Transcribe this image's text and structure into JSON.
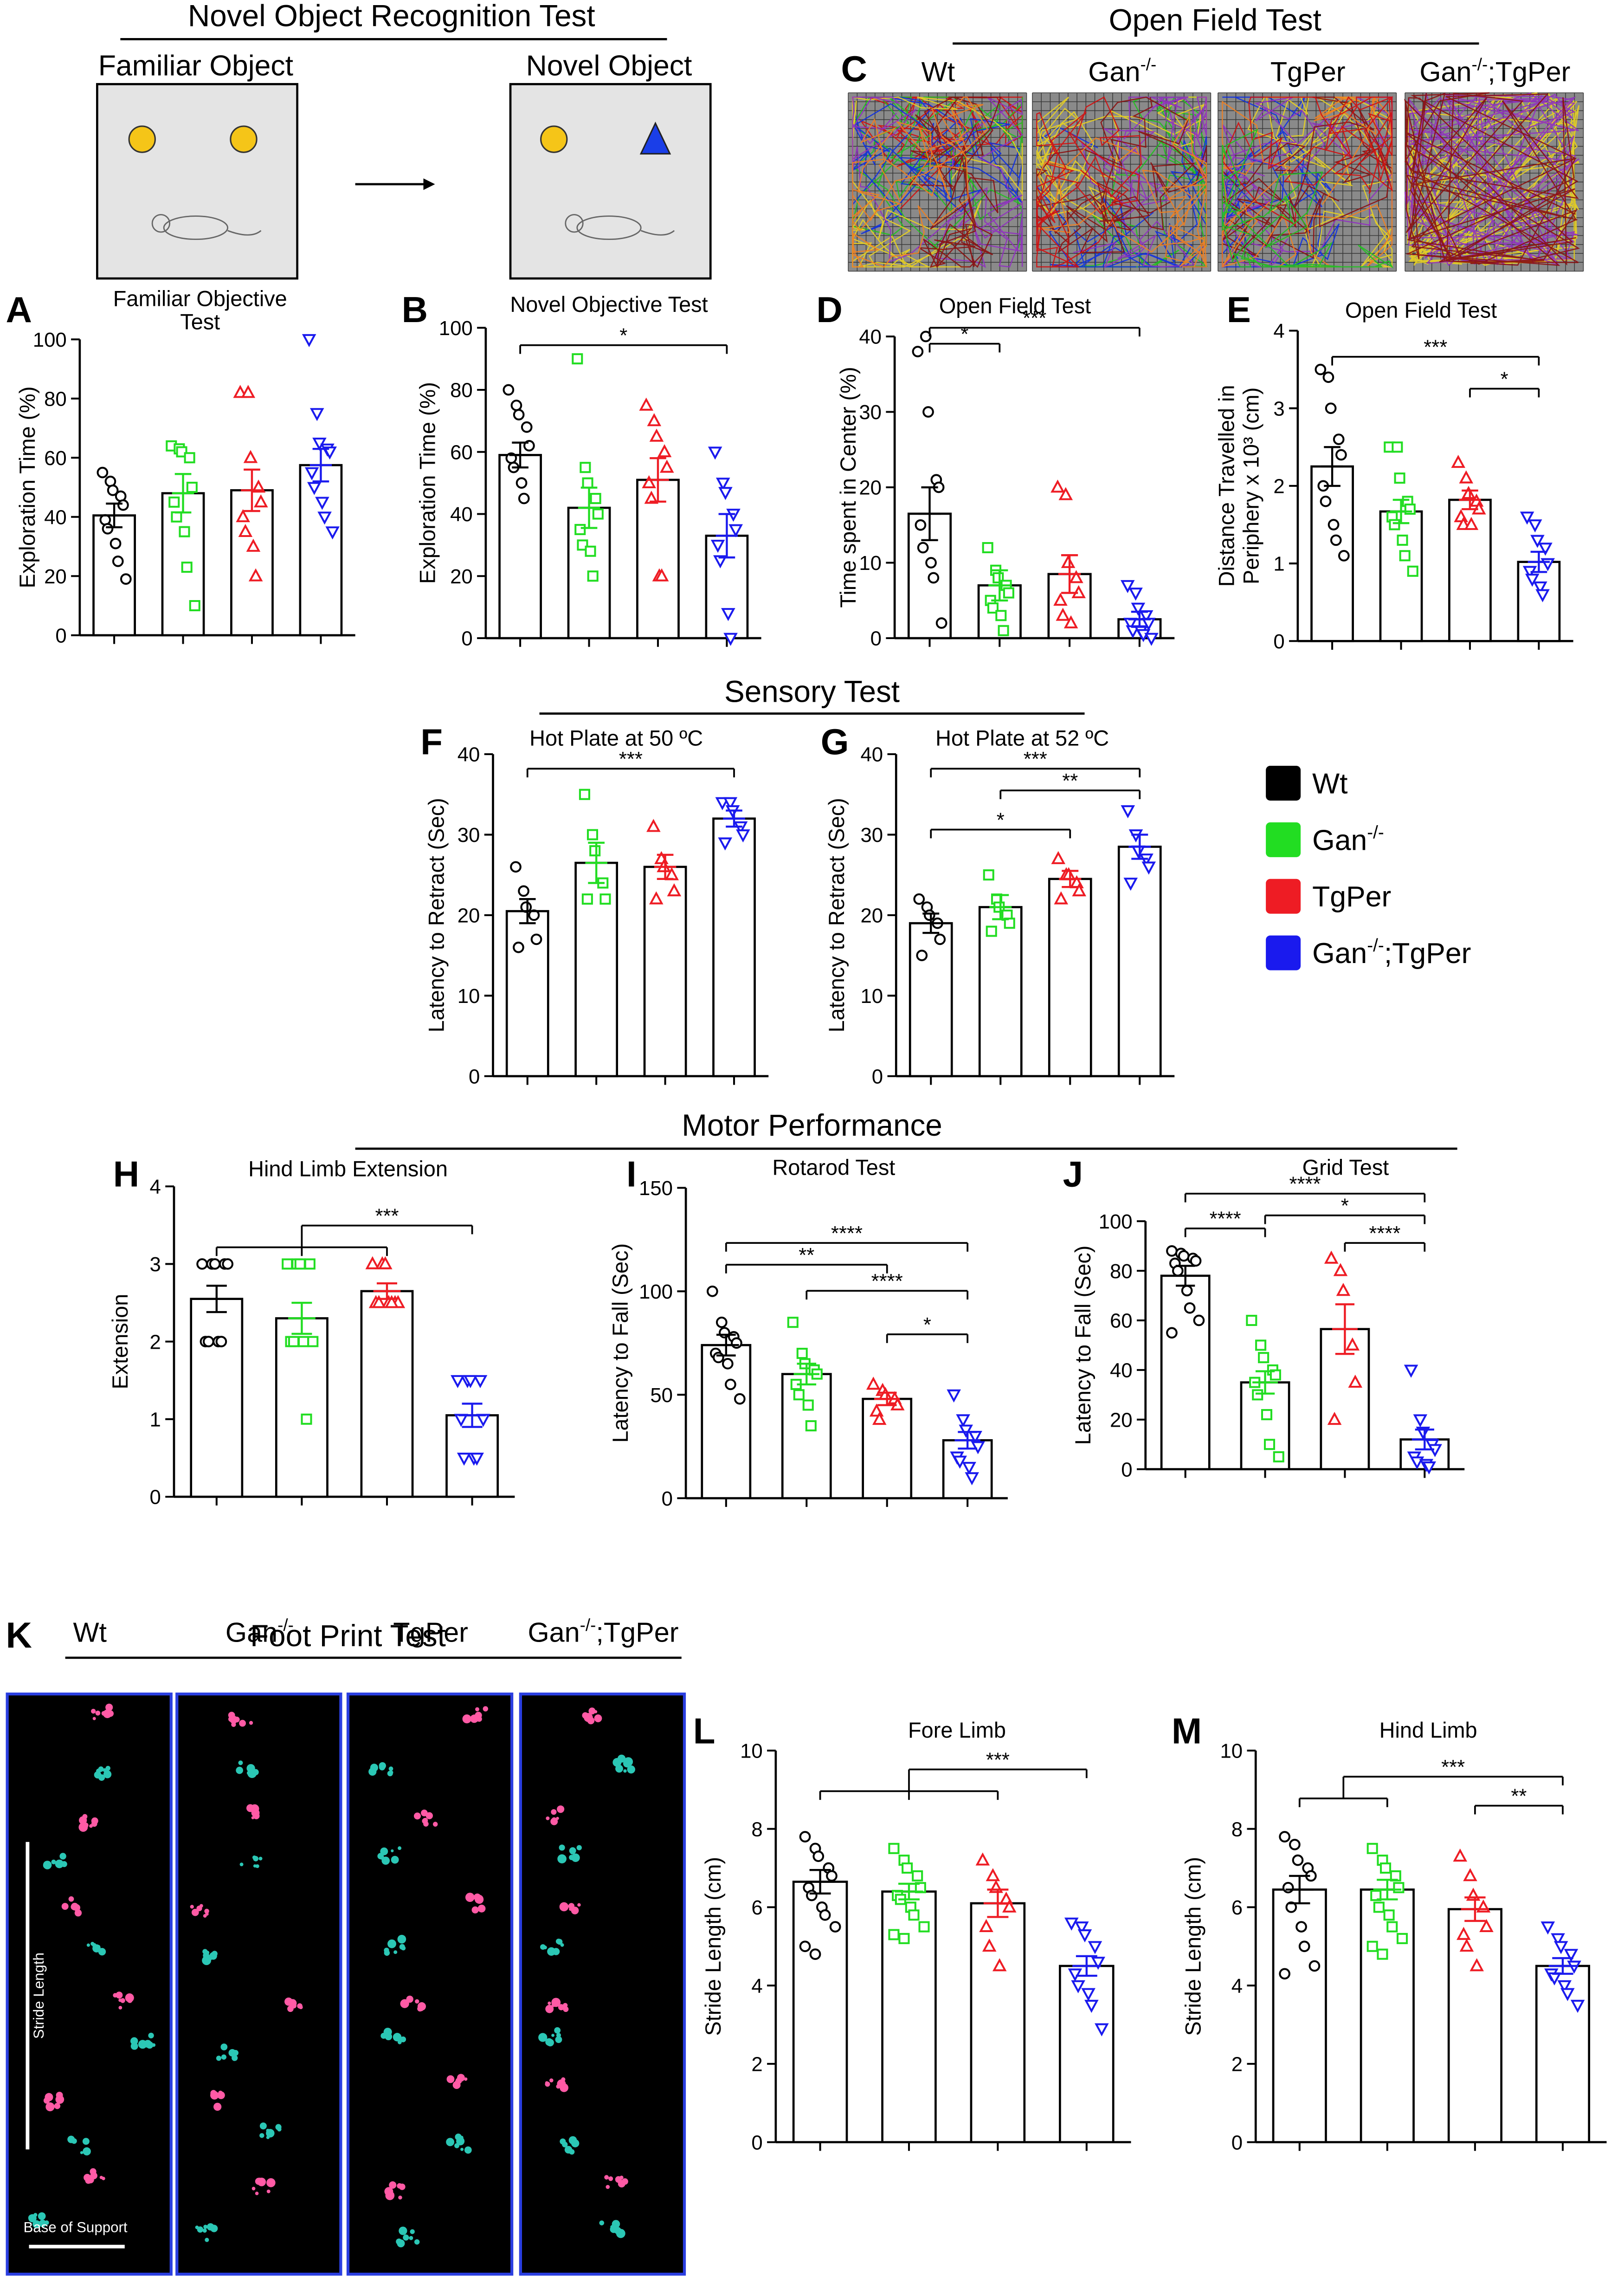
{
  "figure": {
    "headings": [
      "Novel Object Recognition Test",
      "Open Field Test",
      "Sensory Test",
      "Motor Performance",
      "Foot Print Test"
    ],
    "schematic": {
      "familiar": "Familiar Object",
      "novel": "Novel Object"
    },
    "open_field": {
      "panel": "C",
      "groups": [
        [
          "Wt"
        ],
        [
          "Gan",
          "-/-"
        ],
        [
          "TgPer"
        ],
        [
          "Gan",
          "-/-",
          ";TgPer"
        ]
      ]
    },
    "footprint": {
      "panel": "K",
      "groups": [
        [
          "Wt"
        ],
        [
          "Gan",
          "-/-"
        ],
        [
          "TgPer"
        ],
        [
          "Gan",
          "-/-",
          ";TgPer"
        ]
      ],
      "stride_label": "Stride Length",
      "base_label": "Base of Support"
    },
    "legend": [
      {
        "label": [
          "Wt"
        ],
        "color": "#000000"
      },
      {
        "label": [
          "Gan",
          "-/-"
        ],
        "color": "#22dd22"
      },
      {
        "label": [
          "TgPer"
        ],
        "color": "#ee1c24"
      },
      {
        "label": [
          "Gan",
          "-/-",
          ";TgPer"
        ],
        "color": "#1a1aee"
      }
    ]
  },
  "chart_data": [
    {
      "type": "bar",
      "panel": "A",
      "title": [
        "Familiar Objective",
        "Test"
      ],
      "y_label": [
        "Exploration Time (%)"
      ],
      "categories": [
        null,
        null,
        null,
        null
      ],
      "values": [
        40.5,
        48,
        49,
        57.5
      ],
      "errors": [
        4,
        6.5,
        7,
        5.5
      ],
      "points": [
        [
          55,
          52,
          49,
          47,
          44,
          39,
          36,
          31,
          25,
          19
        ],
        [
          64,
          63,
          62,
          60,
          50,
          45,
          40,
          35,
          23,
          10
        ],
        [
          82,
          82,
          60,
          50,
          45,
          40,
          35,
          30,
          20
        ],
        [
          100,
          75,
          65,
          63,
          62,
          55,
          50,
          45,
          40,
          35
        ]
      ],
      "colors": [
        "#000000",
        "#22dd22",
        "#ee1c24",
        "#1a1aee"
      ],
      "markers": [
        "circle",
        "square",
        "triangle",
        "triangle-down"
      ],
      "ylim": [
        0,
        100
      ],
      "yticks": [
        0,
        20,
        40,
        60,
        80,
        100
      ],
      "comparisons": []
    },
    {
      "type": "bar",
      "panel": "B",
      "title": [
        "Novel Objective Test"
      ],
      "y_label": [
        "Exploration Time (%)"
      ],
      "categories": [
        null,
        null,
        null,
        null
      ],
      "values": [
        59,
        42,
        51,
        33
      ],
      "errors": [
        4,
        6.5,
        7,
        7
      ],
      "points": [
        [
          80,
          75,
          72,
          68,
          62,
          58,
          55,
          50,
          45
        ],
        [
          90,
          55,
          50,
          45,
          40,
          35,
          30,
          28,
          20
        ],
        [
          75,
          70,
          65,
          60,
          55,
          50,
          45,
          20,
          20
        ],
        [
          60,
          50,
          47,
          40,
          35,
          30,
          25,
          8,
          0
        ]
      ],
      "colors": [
        "#000000",
        "#22dd22",
        "#ee1c24",
        "#1a1aee"
      ],
      "markers": [
        "circle",
        "square",
        "triangle",
        "triangle-down"
      ],
      "ylim": [
        0,
        100
      ],
      "yticks": [
        0,
        20,
        40,
        60,
        80,
        100
      ],
      "comparisons": [
        {
          "left": [
            0
          ],
          "right": 3,
          "label": "*"
        }
      ]
    },
    {
      "type": "bar",
      "panel": "D",
      "title": [
        "Open Field Test"
      ],
      "y_label": [
        "Time spent in Center (%)"
      ],
      "categories": [
        null,
        null,
        null,
        null
      ],
      "values": [
        16.5,
        7,
        8.5,
        2.5
      ],
      "errors": [
        3.5,
        2,
        2.5,
        1
      ],
      "points": [
        [
          38,
          40,
          30,
          21,
          20,
          15,
          12,
          10,
          8,
          2
        ],
        [
          12,
          9,
          8,
          7,
          6,
          5,
          4,
          3,
          1
        ],
        [
          20,
          19,
          10,
          8,
          6,
          5,
          3,
          2
        ],
        [
          7,
          6,
          4,
          3,
          2,
          2,
          1,
          1,
          0.5,
          0
        ]
      ],
      "colors": [
        "#000000",
        "#22dd22",
        "#ee1c24",
        "#1a1aee"
      ],
      "markers": [
        "circle",
        "square",
        "triangle",
        "triangle-down"
      ],
      "ylim": [
        0,
        40
      ],
      "yticks": [
        0,
        10,
        20,
        30,
        40
      ],
      "comparisons": [
        {
          "left": [
            0
          ],
          "right": 1,
          "label": "*"
        },
        {
          "left": [
            0
          ],
          "right": 3,
          "label": "***"
        }
      ]
    },
    {
      "type": "bar",
      "panel": "E",
      "title": [
        "Open Field Test"
      ],
      "y_label": [
        "Distance Travelled in",
        "Periphery x 10³ (cm)"
      ],
      "categories": [
        null,
        null,
        null,
        null
      ],
      "values": [
        2.25,
        1.67,
        1.82,
        1.02
      ],
      "errors": [
        0.25,
        0.15,
        0.12,
        0.13
      ],
      "points": [
        [
          3.5,
          3.4,
          3.0,
          2.6,
          2.4,
          2.0,
          1.8,
          1.5,
          1.3,
          1.1
        ],
        [
          2.5,
          2.5,
          2.1,
          1.8,
          1.7,
          1.6,
          1.5,
          1.3,
          1.1,
          0.9
        ],
        [
          2.3,
          2.1,
          1.9,
          1.8,
          1.7,
          1.6,
          1.5,
          1.5
        ],
        [
          1.6,
          1.5,
          1.3,
          1.2,
          1.0,
          0.9,
          0.8,
          0.7,
          0.6
        ]
      ],
      "colors": [
        "#000000",
        "#22dd22",
        "#ee1c24",
        "#1a1aee"
      ],
      "markers": [
        "circle",
        "square",
        "triangle",
        "triangle-down"
      ],
      "ylim": [
        0,
        4
      ],
      "yticks": [
        0,
        1,
        2,
        3,
        4
      ],
      "comparisons": [
        {
          "left": [
            0
          ],
          "right": 3,
          "label": "***"
        },
        {
          "left": [
            2
          ],
          "right": 3,
          "label": "*"
        }
      ]
    },
    {
      "type": "bar",
      "panel": "F",
      "title": [
        "Hot Plate at 50 ºC"
      ],
      "y_label": [
        "Latency to Retract (Sec)"
      ],
      "categories": [
        null,
        null,
        null,
        null
      ],
      "values": [
        20.5,
        26.5,
        26,
        32
      ],
      "errors": [
        1.5,
        2.5,
        1.5,
        1
      ],
      "points": [
        [
          26,
          23,
          21,
          20,
          17,
          16
        ],
        [
          35,
          30,
          28,
          24,
          22,
          22
        ],
        [
          31,
          27,
          26,
          25,
          23,
          22
        ],
        [
          34,
          34,
          33,
          31,
          30,
          29
        ]
      ],
      "colors": [
        "#000000",
        "#22dd22",
        "#ee1c24",
        "#1a1aee"
      ],
      "markers": [
        "circle",
        "square",
        "triangle",
        "triangle-down"
      ],
      "ylim": [
        0,
        40
      ],
      "yticks": [
        0,
        10,
        20,
        30,
        40
      ],
      "comparisons": [
        {
          "left": [
            0
          ],
          "right": 3,
          "label": "***"
        }
      ]
    },
    {
      "type": "bar",
      "panel": "G",
      "title": [
        "Hot Plate at 52 ºC"
      ],
      "y_label": [
        "Latency to Retract (Sec)"
      ],
      "categories": [
        null,
        null,
        null,
        null
      ],
      "values": [
        19,
        21,
        24.5,
        28.5
      ],
      "errors": [
        1.2,
        1.5,
        1,
        1.5
      ],
      "points": [
        [
          22,
          21,
          20,
          19,
          17,
          15
        ],
        [
          25,
          22,
          21,
          20,
          19,
          18
        ],
        [
          27,
          25,
          25,
          24,
          23,
          22
        ],
        [
          33,
          30,
          28,
          27,
          26,
          24
        ]
      ],
      "colors": [
        "#000000",
        "#22dd22",
        "#ee1c24",
        "#1a1aee"
      ],
      "markers": [
        "circle",
        "square",
        "triangle",
        "triangle-down"
      ],
      "ylim": [
        0,
        40
      ],
      "yticks": [
        0,
        10,
        20,
        30,
        40
      ],
      "comparisons": [
        {
          "left": [
            0
          ],
          "right": 3,
          "label": "***"
        },
        {
          "left": [
            1
          ],
          "right": 3,
          "label": "**"
        },
        {
          "left": [
            0
          ],
          "right": 2,
          "label": "*"
        }
      ]
    },
    {
      "type": "bar",
      "panel": "H",
      "title": [
        "Hind Limb Extension"
      ],
      "y_label": [
        "Extension"
      ],
      "categories": [
        null,
        null,
        null,
        null
      ],
      "values": [
        2.55,
        2.3,
        2.65,
        1.05
      ],
      "errors": [
        0.17,
        0.2,
        0.1,
        0.15
      ],
      "points": [
        [
          3,
          3,
          3,
          3,
          3,
          2,
          2,
          2,
          2
        ],
        [
          3,
          3,
          3,
          3,
          2,
          2,
          2,
          2,
          1
        ],
        [
          3,
          3,
          3,
          2.5,
          2.5,
          2.5,
          2.5,
          2.5,
          2.5
        ],
        [
          1.5,
          1.5,
          1.5,
          1.5,
          1,
          1,
          0.5,
          0.5,
          0.5
        ]
      ],
      "colors": [
        "#000000",
        "#22dd22",
        "#ee1c24",
        "#1a1aee"
      ],
      "markers": [
        "circle",
        "square",
        "triangle",
        "triangle-down"
      ],
      "ylim": [
        0,
        4
      ],
      "yticks": [
        0,
        1,
        2,
        3,
        4
      ],
      "comparisons": [
        {
          "left": [
            0,
            1,
            2
          ],
          "right": 3,
          "label": "***"
        }
      ]
    },
    {
      "type": "bar",
      "panel": "I",
      "title": [
        "Rotarod Test"
      ],
      "y_label": [
        "Latency to Fall (Sec)"
      ],
      "categories": [
        null,
        null,
        null,
        null
      ],
      "values": [
        74,
        60,
        48,
        28
      ],
      "errors": [
        5,
        5,
        3,
        4
      ],
      "points": [
        [
          100,
          85,
          80,
          78,
          75,
          70,
          68,
          65,
          55,
          48
        ],
        [
          85,
          70,
          65,
          62,
          60,
          55,
          50,
          45,
          35
        ],
        [
          55,
          52,
          50,
          48,
          45,
          42,
          38
        ],
        [
          50,
          38,
          33,
          30,
          25,
          20,
          18,
          15,
          10
        ]
      ],
      "colors": [
        "#000000",
        "#22dd22",
        "#ee1c24",
        "#1a1aee"
      ],
      "markers": [
        "circle",
        "square",
        "triangle",
        "triangle-down"
      ],
      "ylim": [
        0,
        150
      ],
      "yticks": [
        0,
        50,
        100,
        150
      ],
      "comparisons": [
        {
          "left": [
            0
          ],
          "right": 3,
          "label": "****"
        },
        {
          "left": [
            0
          ],
          "right": 2,
          "label": "**"
        },
        {
          "left": [
            1
          ],
          "right": 3,
          "label": "****"
        },
        {
          "left": [
            2
          ],
          "right": 3,
          "label": "*"
        }
      ]
    },
    {
      "type": "bar",
      "panel": "J",
      "title": [
        "Grid Test"
      ],
      "y_label": [
        "Latency to Fall (Sec)"
      ],
      "categories": [
        null,
        null,
        null,
        null
      ],
      "values": [
        78,
        35,
        56.5,
        12
      ],
      "errors": [
        4,
        4.5,
        10,
        4
      ],
      "points": [
        [
          88,
          87,
          86,
          85,
          84,
          83,
          80,
          72,
          65,
          60,
          55
        ],
        [
          60,
          50,
          45,
          40,
          38,
          35,
          30,
          22,
          10,
          5
        ],
        [
          85,
          80,
          72,
          50,
          35,
          20
        ],
        [
          40,
          20,
          15,
          10,
          8,
          5,
          3,
          2,
          1
        ]
      ],
      "colors": [
        "#000000",
        "#22dd22",
        "#ee1c24",
        "#1a1aee"
      ],
      "markers": [
        "circle",
        "square",
        "triangle",
        "triangle-down"
      ],
      "ylim": [
        0,
        100
      ],
      "yticks": [
        0,
        20,
        40,
        60,
        80,
        100
      ],
      "comparisons": [
        {
          "left": [
            0
          ],
          "right": 3,
          "label": "****"
        },
        {
          "left": [
            1
          ],
          "right": 3,
          "label": "*"
        },
        {
          "left": [
            0
          ],
          "right": 1,
          "label": "****"
        },
        {
          "left": [
            2
          ],
          "right": 3,
          "label": "****"
        }
      ]
    },
    {
      "type": "bar",
      "panel": "L",
      "title": [
        "Fore Limb"
      ],
      "y_label": [
        "Stride Length (cm)"
      ],
      "categories": [
        null,
        null,
        null,
        null
      ],
      "values": [
        6.65,
        6.4,
        6.1,
        4.5
      ],
      "errors": [
        0.3,
        0.2,
        0.35,
        0.25
      ],
      "points": [
        [
          7.8,
          7.5,
          7.3,
          7.0,
          6.8,
          6.5,
          6.3,
          6.0,
          5.8,
          5.5,
          5.0,
          4.8
        ],
        [
          7.5,
          7.2,
          7.0,
          6.8,
          6.5,
          6.3,
          6.2,
          6.0,
          5.8,
          5.5,
          5.3,
          5.2
        ],
        [
          7.2,
          6.8,
          6.5,
          6.2,
          6.0,
          5.5,
          5.0,
          4.5
        ],
        [
          5.6,
          5.5,
          5.3,
          5.0,
          4.6,
          4.3,
          4.0,
          3.8,
          3.5,
          2.9
        ]
      ],
      "colors": [
        "#000000",
        "#22dd22",
        "#ee1c24",
        "#1a1aee"
      ],
      "markers": [
        "circle",
        "square",
        "triangle",
        "triangle-down"
      ],
      "ylim": [
        0,
        10
      ],
      "yticks": [
        0,
        2,
        4,
        6,
        8,
        10
      ],
      "comparisons": [
        {
          "left": [
            0,
            1,
            2
          ],
          "right": 3,
          "label": "***"
        }
      ]
    },
    {
      "type": "bar",
      "panel": "M",
      "title": [
        "Hind Limb"
      ],
      "y_label": [
        "Stride Length (cm)"
      ],
      "categories": [
        null,
        null,
        null,
        null
      ],
      "values": [
        6.45,
        6.45,
        5.95,
        4.5
      ],
      "errors": [
        0.35,
        0.25,
        0.3,
        0.2
      ],
      "points": [
        [
          7.8,
          7.6,
          7.2,
          7.0,
          6.8,
          6.5,
          6.0,
          5.5,
          5.0,
          4.5,
          4.3
        ],
        [
          7.5,
          7.2,
          7.0,
          6.8,
          6.5,
          6.3,
          6.0,
          5.8,
          5.5,
          5.2,
          5.0,
          4.8
        ],
        [
          7.3,
          6.8,
          6.3,
          6.0,
          5.5,
          5.3,
          5.0,
          4.5
        ],
        [
          5.5,
          5.2,
          5.0,
          4.8,
          4.5,
          4.3,
          4.2,
          4.0,
          3.8,
          3.5
        ]
      ],
      "colors": [
        "#000000",
        "#22dd22",
        "#ee1c24",
        "#1a1aee"
      ],
      "markers": [
        "circle",
        "square",
        "triangle",
        "triangle-down"
      ],
      "ylim": [
        0,
        10
      ],
      "yticks": [
        0,
        2,
        4,
        6,
        8,
        10
      ],
      "comparisons": [
        {
          "left": [
            0,
            1
          ],
          "right": 3,
          "label": "***"
        },
        {
          "left": [
            2
          ],
          "right": 3,
          "label": "**"
        }
      ]
    }
  ]
}
